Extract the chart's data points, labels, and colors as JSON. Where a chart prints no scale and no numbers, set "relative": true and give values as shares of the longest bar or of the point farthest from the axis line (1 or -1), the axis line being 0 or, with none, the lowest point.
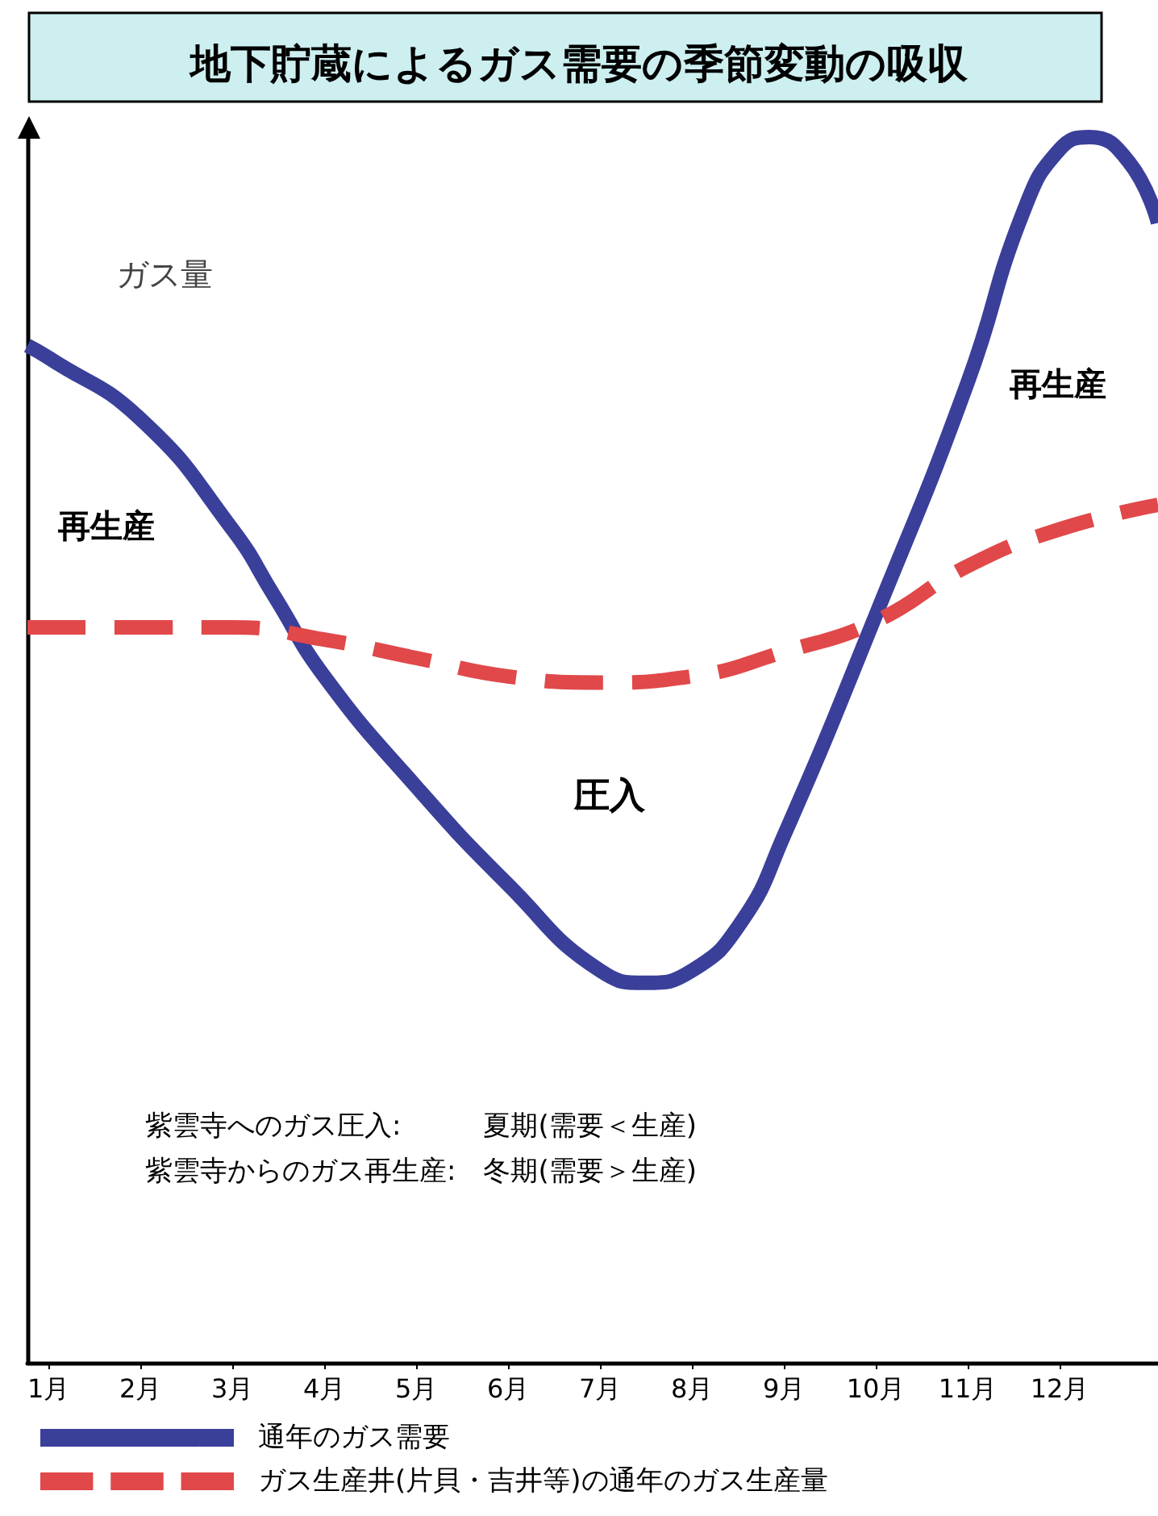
{
  "chart_data": {
    "type": "line",
    "title": "地下貯蔵によるガス需要の季節変動の吸収",
    "ylabel": "ガス量",
    "relative": true,
    "marker": "none",
    "grid": false,
    "legend": "bottom",
    "xlim": [
      0.77,
      13.07
    ],
    "xticks": [
      {
        "value": 1,
        "label": "1月"
      },
      {
        "value": 2,
        "label": "2月"
      },
      {
        "value": 3,
        "label": "3月"
      },
      {
        "value": 4,
        "label": "4月"
      },
      {
        "value": 5,
        "label": "5月"
      },
      {
        "value": 6,
        "label": "6月"
      },
      {
        "value": 7,
        "label": "7月"
      },
      {
        "value": 8,
        "label": "8月"
      },
      {
        "value": 9,
        "label": "9月"
      },
      {
        "value": 10,
        "label": "10月"
      },
      {
        "value": 11,
        "label": "11月"
      },
      {
        "value": 12,
        "label": "12月"
      }
    ],
    "series": [
      {
        "name": "通年のガス需要",
        "color": "#3a3f9a",
        "line_style": "solid",
        "x": [
          0.77,
          1,
          2,
          3,
          3.46,
          4,
          5,
          6,
          7,
          7.49,
          8,
          8.54,
          9,
          10,
          11,
          11.61,
          12,
          12.32,
          12.75,
          13.07
        ],
        "values": [
          0.83,
          0.82,
          0.77,
          0.68,
          0.625,
          0.56,
          0.47,
          0.39,
          0.32,
          0.31,
          0.32,
          0.36,
          0.43,
          0.61,
          0.8,
          0.94,
          0.99,
          1.0,
          0.98,
          0.93
        ]
      },
      {
        "name": "ガス生産井(片貝・吉井等)の通年のガス生産量",
        "color": "#e0484a",
        "line_style": "dashed",
        "x": [
          0.77,
          1,
          2,
          3,
          4,
          5,
          6,
          7,
          8,
          9,
          10,
          11,
          12,
          13.07
        ],
        "values": [
          0.6,
          0.6,
          0.6,
          0.6,
          0.59,
          0.575,
          0.56,
          0.555,
          0.56,
          0.58,
          0.605,
          0.65,
          0.68,
          0.7
        ]
      }
    ],
    "annotations": [
      "再生産",
      "再生産",
      "圧入",
      "紫雲寺へのガス圧入:　　　夏期(需要＜生産)",
      "紫雲寺からのガス再生産:　冬期(需要＞生産)"
    ]
  }
}
